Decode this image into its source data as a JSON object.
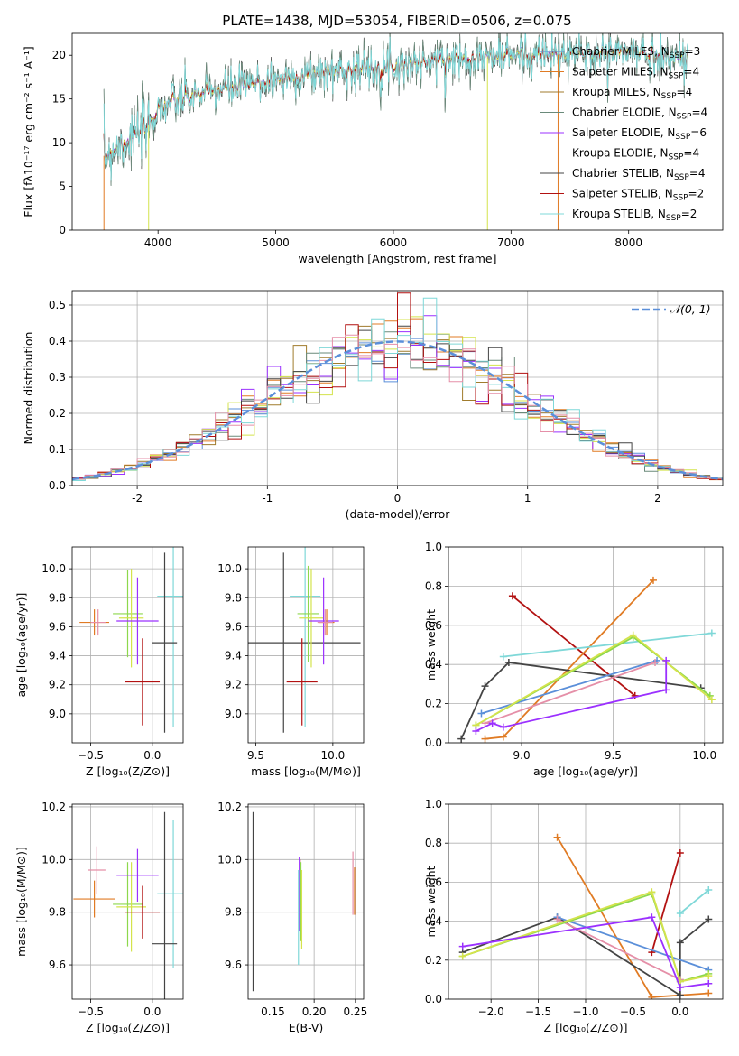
{
  "title": "PLATE=1438, MJD=53054, FIBERID=0506, z=0.075",
  "palette": [
    "#5b8fd9",
    "#e07b24",
    "#a07b2c",
    "#6a8a7a",
    "#9b30ff",
    "#d4e34c",
    "#444444",
    "#b21111",
    "#7fd8d8",
    "#e58fa8",
    "#8dd84c",
    "#6e2c8c"
  ],
  "chart_data": [
    {
      "id": "spectrum",
      "type": "line",
      "xlabel": "wavelength [Angstrom, rest frame]",
      "ylabel": "Flux [fλ10⁻¹⁷ erg cm⁻² s⁻¹ A⁻¹]",
      "xlim": [
        3270,
        8800
      ],
      "ylim": [
        0,
        22.5
      ],
      "xticks": [
        4000,
        5000,
        6000,
        7000,
        8000
      ],
      "yticks": [
        0,
        5,
        10,
        15,
        20
      ],
      "grid": false,
      "legend_position": "right",
      "continuum": {
        "x": [
          3540,
          3700,
          3900,
          4000,
          4200,
          4500,
          5000,
          5500,
          6000,
          6500,
          7000,
          7500,
          8000,
          8500
        ],
        "y": [
          8.5,
          10.0,
          11.5,
          14.0,
          15.0,
          16.0,
          17.2,
          18.2,
          18.8,
          19.6,
          20.0,
          20.1,
          20.4,
          19.6
        ]
      },
      "series": [
        {
          "name": "Chabrier MILES, N_SSP=3",
          "color": "#5b8fd9"
        },
        {
          "name": "Salpeter MILES, N_SSP=4",
          "color": "#e07b24"
        },
        {
          "name": "Kroupa MILES, N_SSP=4",
          "color": "#a07b2c"
        },
        {
          "name": "Chabrier ELODIE, N_SSP=4",
          "color": "#6a8a7a"
        },
        {
          "name": "Salpeter ELODIE, N_SSP=6",
          "color": "#9b30ff"
        },
        {
          "name": "Kroupa ELODIE, N_SSP=4",
          "color": "#d4e34c"
        },
        {
          "name": "Chabrier STELIB, N_SSP=4",
          "color": "#444444"
        },
        {
          "name": "Salpeter STELIB, N_SSP=2",
          "color": "#b21111"
        },
        {
          "name": "Kroupa STELIB, N_SSP=2",
          "color": "#7fd8d8"
        }
      ]
    },
    {
      "id": "residuals",
      "type": "histogram",
      "xlabel": "(data-model)/error",
      "ylabel": "Normed distribution",
      "xlim": [
        -2.5,
        2.5
      ],
      "ylim": [
        0,
        0.54
      ],
      "xticks": [
        -2,
        -1,
        0,
        1,
        2
      ],
      "yticks": [
        0.0,
        0.1,
        0.2,
        0.3,
        0.4,
        0.5
      ],
      "grid": true,
      "legend_position": "top-right",
      "reference": {
        "name": "𝒩(0, 1)",
        "color": "#5b8fd9",
        "mean": 0,
        "sigma": 1
      },
      "bin_width": 0.1,
      "series_colors": [
        "#5b8fd9",
        "#e07b24",
        "#a07b2c",
        "#6a8a7a",
        "#9b30ff",
        "#d4e34c",
        "#444444",
        "#b21111",
        "#7fd8d8",
        "#e58fa8"
      ]
    },
    {
      "id": "age_vs_Z",
      "type": "errorbar",
      "xlabel": "Z [log₁₀(Z/Z⊙)]",
      "ylabel": "age  [log₁₀(age/yr)]",
      "xlim": [
        -0.65,
        0.25
      ],
      "ylim": [
        8.8,
        10.15
      ],
      "xticks": [
        -0.5,
        0.0
      ],
      "xticklabels": [
        "−0.5",
        "0.0"
      ],
      "yticks": [
        9.0,
        9.2,
        9.4,
        9.6,
        9.8,
        10.0
      ],
      "grid": true,
      "points": [
        {
          "x": -0.47,
          "y": 9.63,
          "xerr": 0.12,
          "yerr": 0.09,
          "color": "#e07b24"
        },
        {
          "x": -0.44,
          "y": 9.63,
          "xerr": 0.06,
          "yerr": 0.09,
          "color": "#e58fa8"
        },
        {
          "x": -0.2,
          "y": 9.69,
          "xerr": 0.12,
          "yerr": 0.3,
          "color": "#8dd84c"
        },
        {
          "x": -0.17,
          "y": 9.66,
          "xerr": 0.1,
          "yerr": 0.34,
          "color": "#d4e34c"
        },
        {
          "x": -0.12,
          "y": 9.64,
          "xerr": 0.17,
          "yerr": 0.3,
          "color": "#9b30ff"
        },
        {
          "x": -0.08,
          "y": 9.22,
          "xerr": 0.14,
          "yerr": 0.3,
          "color": "#b21111"
        },
        {
          "x": 0.17,
          "y": 9.81,
          "xerr": 0.13,
          "yerr": 0.9,
          "color": "#7fd8d8"
        },
        {
          "x": 0.1,
          "y": 9.49,
          "xerr": 0.1,
          "yerr": 0.62,
          "color": "#444444"
        }
      ]
    },
    {
      "id": "age_vs_mass",
      "type": "errorbar",
      "xlabel": "mass [log₁₀(M/M⊙)]",
      "xlim": [
        9.45,
        10.2
      ],
      "ylim": [
        8.8,
        10.15
      ],
      "xticks": [
        9.5,
        10.0
      ],
      "yticks": [
        9.0,
        9.2,
        9.4,
        9.6,
        9.8,
        10.0
      ],
      "grid": true,
      "points": [
        {
          "x": 9.82,
          "y": 9.81,
          "xerr": 0.1,
          "yerr": 0.9,
          "color": "#7fd8d8"
        },
        {
          "x": 9.68,
          "y": 9.49,
          "xerr": 0.5,
          "yerr": 0.62,
          "color": "#444444"
        },
        {
          "x": 9.8,
          "y": 9.22,
          "xerr": 0.1,
          "yerr": 0.3,
          "color": "#b21111"
        },
        {
          "x": 9.84,
          "y": 9.69,
          "xerr": 0.07,
          "yerr": 0.33,
          "color": "#8dd84c"
        },
        {
          "x": 9.86,
          "y": 9.66,
          "xerr": 0.08,
          "yerr": 0.34,
          "color": "#d4e34c"
        },
        {
          "x": 9.94,
          "y": 9.64,
          "xerr": 0.1,
          "yerr": 0.3,
          "color": "#9b30ff"
        },
        {
          "x": 9.96,
          "y": 9.63,
          "xerr": 0.05,
          "yerr": 0.09,
          "color": "#e07b24"
        },
        {
          "x": 9.95,
          "y": 9.63,
          "xerr": 0.05,
          "yerr": 0.09,
          "color": "#e58fa8"
        }
      ]
    },
    {
      "id": "weight_vs_age",
      "type": "line",
      "xlabel": "age  [log₁₀(age/yr)]",
      "ylabel": "mass weight",
      "xlim": [
        8.6,
        10.1
      ],
      "ylim": [
        0,
        1.0
      ],
      "xticks": [
        9.0,
        9.5,
        10.0
      ],
      "yticks": [
        0.0,
        0.2,
        0.4,
        0.6,
        0.8,
        1.0
      ],
      "grid": true,
      "series": [
        {
          "color": "#b21111",
          "x": [
            8.95,
            9.62
          ],
          "y": [
            0.75,
            0.24
          ]
        },
        {
          "color": "#e07b24",
          "x": [
            8.8,
            8.9,
            9.72
          ],
          "y": [
            0.02,
            0.03,
            0.83
          ]
        },
        {
          "color": "#7fd8d8",
          "x": [
            8.9,
            10.04
          ],
          "y": [
            0.44,
            0.56
          ]
        },
        {
          "color": "#444444",
          "x": [
            8.67,
            8.8,
            8.93,
            9.98
          ],
          "y": [
            0.02,
            0.29,
            0.41,
            0.28
          ]
        },
        {
          "color": "#5b8fd9",
          "x": [
            8.78,
            9.74
          ],
          "y": [
            0.15,
            0.42
          ]
        },
        {
          "color": "#e58fa8",
          "x": [
            8.8,
            9.73
          ],
          "y": [
            0.1,
            0.41
          ]
        },
        {
          "color": "#8dd84c",
          "x": [
            8.75,
            9.61,
            10.03
          ],
          "y": [
            0.09,
            0.54,
            0.24
          ]
        },
        {
          "color": "#d4e34c",
          "x": [
            8.75,
            9.61,
            10.04
          ],
          "y": [
            0.09,
            0.55,
            0.22
          ]
        },
        {
          "color": "#9b30ff",
          "x": [
            8.75,
            8.84,
            8.9,
            9.79,
            9.79
          ],
          "y": [
            0.06,
            0.1,
            0.08,
            0.27,
            0.42
          ]
        }
      ]
    },
    {
      "id": "mass_vs_Z",
      "type": "errorbar",
      "xlabel": "Z [log₁₀(Z/Z⊙)]",
      "ylabel": "mass [log₁₀(M/M⊙)]",
      "xlim": [
        -0.65,
        0.25
      ],
      "ylim": [
        9.47,
        10.21
      ],
      "xticks": [
        -0.5,
        0.0
      ],
      "xticklabels": [
        "−0.5",
        "0.0"
      ],
      "yticks": [
        9.6,
        9.8,
        10.0,
        10.2
      ],
      "grid": true,
      "points": [
        {
          "x": -0.47,
          "y": 9.85,
          "xerr": 0.17,
          "yerr": 0.07,
          "color": "#e07b24"
        },
        {
          "x": -0.45,
          "y": 9.96,
          "xerr": 0.07,
          "yerr": 0.09,
          "color": "#e58fa8"
        },
        {
          "x": -0.2,
          "y": 9.83,
          "xerr": 0.12,
          "yerr": 0.16,
          "color": "#8dd84c"
        },
        {
          "x": -0.17,
          "y": 9.82,
          "xerr": 0.12,
          "yerr": 0.17,
          "color": "#d4e34c"
        },
        {
          "x": -0.12,
          "y": 9.94,
          "xerr": 0.17,
          "yerr": 0.1,
          "color": "#9b30ff"
        },
        {
          "x": -0.08,
          "y": 9.8,
          "xerr": 0.14,
          "yerr": 0.1,
          "color": "#b21111"
        },
        {
          "x": 0.17,
          "y": 9.87,
          "xerr": 0.13,
          "yerr": 0.28,
          "color": "#7fd8d8"
        },
        {
          "x": 0.1,
          "y": 9.68,
          "xerr": 0.1,
          "yerr": 0.5,
          "color": "#444444"
        }
      ]
    },
    {
      "id": "mass_vs_ebv",
      "type": "errorbar",
      "xlabel": "E(B-V)",
      "xlim": [
        0.12,
        0.26
      ],
      "ylim": [
        9.47,
        10.21
      ],
      "xticks": [
        0.15,
        0.2,
        0.25
      ],
      "yticks": [
        9.6,
        9.8,
        10.0,
        10.2
      ],
      "grid": true,
      "points": [
        {
          "x": 0.126,
          "y": 9.84,
          "xerr": 0,
          "yerr": 0.34,
          "color": "#444444"
        },
        {
          "x": 0.182,
          "y": 9.87,
          "xerr": 0,
          "yerr": 0.14,
          "color": "#9b30ff"
        },
        {
          "x": 0.183,
          "y": 9.86,
          "xerr": 0,
          "yerr": 0.14,
          "color": "#b21111"
        },
        {
          "x": 0.184,
          "y": 9.84,
          "xerr": 0,
          "yerr": 0.15,
          "color": "#8dd84c"
        },
        {
          "x": 0.185,
          "y": 9.81,
          "xerr": 0,
          "yerr": 0.15,
          "color": "#d4e34c"
        },
        {
          "x": 0.181,
          "y": 9.78,
          "xerr": 0,
          "yerr": 0.18,
          "color": "#7fd8d8"
        },
        {
          "x": 0.247,
          "y": 9.91,
          "xerr": 0,
          "yerr": 0.12,
          "color": "#e58fa8"
        },
        {
          "x": 0.249,
          "y": 9.88,
          "xerr": 0,
          "yerr": 0.09,
          "color": "#e07b24"
        }
      ]
    },
    {
      "id": "weight_vs_Z",
      "type": "line",
      "xlabel": "Z [log₁₀(Z/Z⊙)]",
      "ylabel": "mass weight",
      "xlim": [
        -2.45,
        0.45
      ],
      "ylim": [
        0,
        1.0
      ],
      "xticks": [
        -2.0,
        -1.5,
        -1.0,
        -0.5,
        0.0
      ],
      "xticklabels": [
        "−2.0",
        "−1.5",
        "−1.0",
        "−0.5",
        "0.0"
      ],
      "yticks": [
        0.0,
        0.2,
        0.4,
        0.6,
        0.8,
        1.0
      ],
      "grid": true,
      "series": [
        {
          "color": "#e07b24",
          "x": [
            -1.3,
            -0.3,
            0.3
          ],
          "y": [
            0.83,
            0.01,
            0.03
          ]
        },
        {
          "color": "#b21111",
          "x": [
            -0.3,
            0.0
          ],
          "y": [
            0.24,
            0.75
          ]
        },
        {
          "color": "#7fd8d8",
          "x": [
            0.0,
            0.3
          ],
          "y": [
            0.44,
            0.56
          ]
        },
        {
          "color": "#444444",
          "x": [
            -2.3,
            -1.3,
            0.0,
            0.0,
            0.3
          ],
          "y": [
            0.24,
            0.42,
            0.02,
            0.29,
            0.41
          ]
        },
        {
          "color": "#5b8fd9",
          "x": [
            -1.3,
            0.3
          ],
          "y": [
            0.42,
            0.15
          ]
        },
        {
          "color": "#e58fa8",
          "x": [
            -1.3,
            0.0
          ],
          "y": [
            0.41,
            0.1
          ]
        },
        {
          "color": "#8dd84c",
          "x": [
            -2.3,
            -0.3,
            0.0,
            0.3
          ],
          "y": [
            0.22,
            0.54,
            0.09,
            0.13
          ]
        },
        {
          "color": "#d4e34c",
          "x": [
            -2.3,
            -0.3,
            0.0,
            0.3
          ],
          "y": [
            0.22,
            0.55,
            0.09,
            0.12
          ]
        },
        {
          "color": "#9b30ff",
          "x": [
            -2.3,
            -0.3,
            0.0,
            0.3
          ],
          "y": [
            0.27,
            0.42,
            0.06,
            0.08
          ]
        }
      ]
    }
  ]
}
